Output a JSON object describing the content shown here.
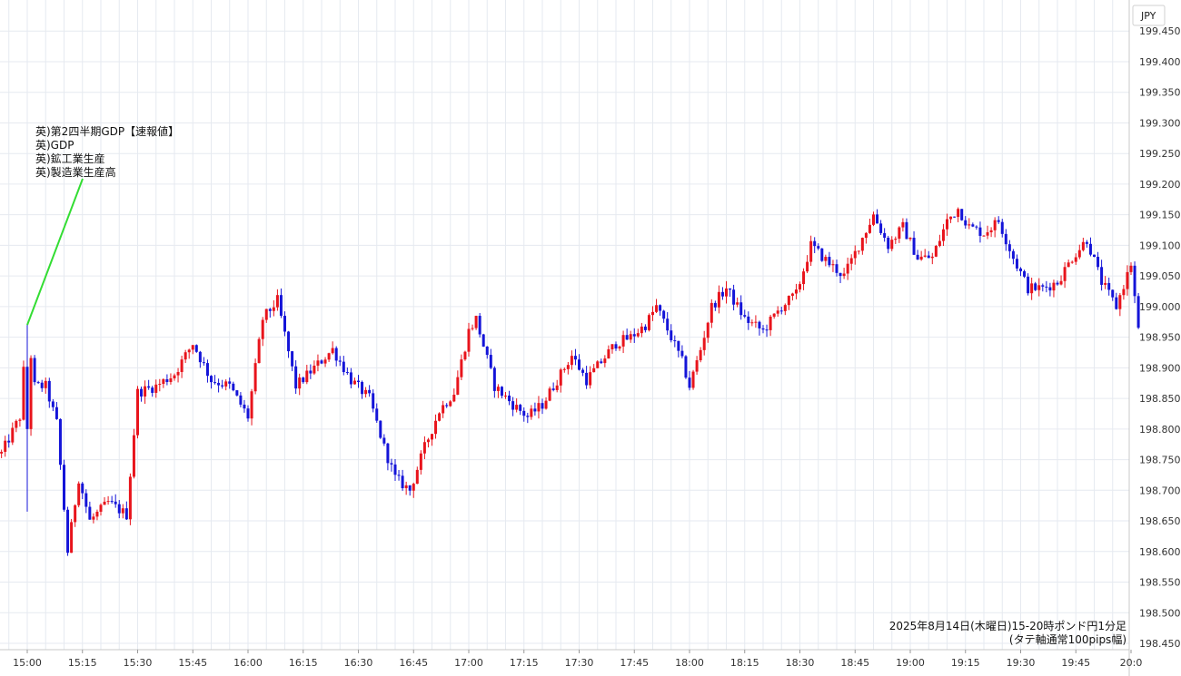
{
  "chart_data": {
    "type": "candlestick",
    "currency_label": "JPY",
    "caption_lines": [
      "2025年8月14日(木曜日)15-20時ポンド円1分足",
      "(タテ軸通常100pips幅)"
    ],
    "annotation_lines": [
      "英)第2四半期GDP【速報値】",
      "英)GDP",
      "英)鉱工業生産",
      "英)製造業生産高"
    ],
    "ylim": [
      198.45,
      199.48
    ],
    "y_ticks": [
      "199.450",
      "199.400",
      "199.350",
      "199.300",
      "199.250",
      "199.200",
      "199.150",
      "199.100",
      "199.050",
      "199.000",
      "198.950",
      "198.900",
      "198.850",
      "198.800",
      "198.750",
      "198.700",
      "198.650",
      "198.600",
      "198.550",
      "198.500",
      "198.450"
    ],
    "x_ticks": [
      "15:00",
      "15:15",
      "15:30",
      "15:45",
      "16:00",
      "16:15",
      "16:30",
      "16:45",
      "17:00",
      "17:15",
      "17:30",
      "17:45",
      "18:00",
      "18:15",
      "18:30",
      "18:45",
      "19:00",
      "19:15",
      "19:30",
      "19:45",
      "20:0"
    ],
    "x_tick_minutes": [
      0,
      15,
      30,
      45,
      60,
      75,
      90,
      105,
      120,
      135,
      150,
      165,
      180,
      195,
      210,
      225,
      240,
      255,
      270,
      285,
      300
    ],
    "event_minute": 0,
    "event_price": 198.97,
    "first_minute": -7,
    "last_minute": 302,
    "anchors": [
      [
        -7,
        198.76
      ],
      [
        -2,
        198.82
      ],
      [
        0,
        198.97
      ],
      [
        2,
        198.87
      ],
      [
        5,
        198.87
      ],
      [
        8,
        198.81
      ],
      [
        11,
        198.6
      ],
      [
        14,
        198.72
      ],
      [
        17,
        198.65
      ],
      [
        22,
        198.68
      ],
      [
        27,
        198.66
      ],
      [
        30,
        198.86
      ],
      [
        35,
        198.87
      ],
      [
        40,
        198.89
      ],
      [
        45,
        198.94
      ],
      [
        50,
        198.88
      ],
      [
        55,
        198.87
      ],
      [
        60,
        198.82
      ],
      [
        64,
        198.98
      ],
      [
        68,
        199.01
      ],
      [
        73,
        198.87
      ],
      [
        78,
        198.9
      ],
      [
        83,
        198.93
      ],
      [
        88,
        198.88
      ],
      [
        93,
        198.85
      ],
      [
        97,
        198.77
      ],
      [
        100,
        198.72
      ],
      [
        104,
        198.7
      ],
      [
        108,
        198.77
      ],
      [
        112,
        198.83
      ],
      [
        116,
        198.86
      ],
      [
        120,
        198.96
      ],
      [
        122,
        198.98
      ],
      [
        127,
        198.87
      ],
      [
        132,
        198.84
      ],
      [
        136,
        198.82
      ],
      [
        140,
        198.84
      ],
      [
        144,
        198.88
      ],
      [
        148,
        198.92
      ],
      [
        152,
        198.88
      ],
      [
        156,
        198.91
      ],
      [
        160,
        198.94
      ],
      [
        164,
        198.95
      ],
      [
        168,
        198.97
      ],
      [
        171,
        199.0
      ],
      [
        175,
        198.95
      ],
      [
        178,
        198.91
      ],
      [
        180,
        198.87
      ],
      [
        183,
        198.93
      ],
      [
        186,
        199.0
      ],
      [
        190,
        199.03
      ],
      [
        195,
        198.98
      ],
      [
        200,
        198.96
      ],
      [
        205,
        199.0
      ],
      [
        209,
        199.02
      ],
      [
        213,
        199.1
      ],
      [
        218,
        199.07
      ],
      [
        222,
        199.05
      ],
      [
        226,
        199.1
      ],
      [
        230,
        199.15
      ],
      [
        234,
        199.1
      ],
      [
        238,
        199.13
      ],
      [
        242,
        199.08
      ],
      [
        246,
        199.08
      ],
      [
        250,
        199.14
      ],
      [
        253,
        199.16
      ],
      [
        256,
        199.13
      ],
      [
        260,
        199.12
      ],
      [
        264,
        199.14
      ],
      [
        268,
        199.08
      ],
      [
        272,
        199.03
      ],
      [
        276,
        199.03
      ],
      [
        280,
        199.04
      ],
      [
        284,
        199.08
      ],
      [
        288,
        199.11
      ],
      [
        292,
        199.04
      ],
      [
        296,
        199.0
      ],
      [
        300,
        199.07
      ],
      [
        302,
        198.96
      ]
    ],
    "x_range_minutes": [
      -7,
      302
    ],
    "title": "",
    "xlabel": "",
    "ylabel": "",
    "grid": true,
    "up_color": "#e8141c",
    "down_color": "#1414d8",
    "annotation_line_color": "#33dd33"
  }
}
